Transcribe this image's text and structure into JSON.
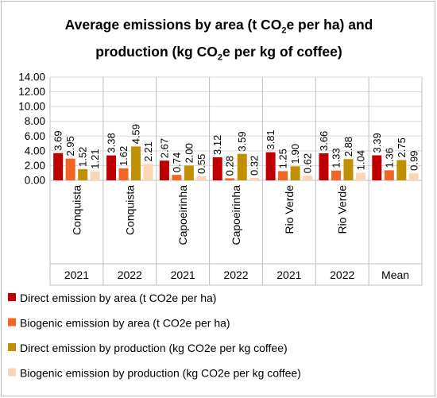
{
  "chart_data": {
    "type": "bar",
    "title_line1_pre": "Average emissions by area (t CO",
    "title_line1_sub": "2",
    "title_line1_post": "e per ha) and",
    "title_line2_pre": "production (kg CO",
    "title_line2_sub": "2",
    "title_line2_post": "e per kg of coffee)",
    "categories": [
      {
        "name": "Conquista",
        "group": "2021"
      },
      {
        "name": "Conquista",
        "group": "2022"
      },
      {
        "name": "Capoeirinha",
        "group": "2021"
      },
      {
        "name": "Capoeirinha",
        "group": "2022"
      },
      {
        "name": "Rio Verde",
        "group": "2021"
      },
      {
        "name": "Rio Verde",
        "group": "2022"
      },
      {
        "name": "",
        "group": "Mean"
      }
    ],
    "series": [
      {
        "name": "Direct emission by area (t CO2e per ha)",
        "color": "#c00000",
        "values": [
          3.69,
          3.38,
          2.67,
          3.12,
          3.81,
          3.66,
          3.39
        ],
        "labels": [
          "3.69",
          "3.38",
          "2.67",
          "3.12",
          "3.81",
          "3.66",
          "3.39"
        ]
      },
      {
        "name": "Biogenic emission by area (t CO2e per ha)",
        "color": "#f26522",
        "values": [
          2.95,
          1.62,
          0.74,
          0.28,
          1.25,
          1.33,
          1.36
        ],
        "labels": [
          "2.95",
          "1.62",
          "0.74",
          "0.28",
          "1.25",
          "1.33",
          "1.36"
        ]
      },
      {
        "name": "Direct emission by production (kg CO2e per kg coffee)",
        "color": "#bf9000",
        "values": [
          1.52,
          4.59,
          2.0,
          3.59,
          1.9,
          2.88,
          2.75
        ],
        "labels": [
          "1.52",
          "4.59",
          "2.00",
          "3.59",
          "1.90",
          "2.88",
          "2.75"
        ]
      },
      {
        "name": "Biogenic emission by production (kg CO2e per kg coffee)",
        "color": "#fcd5b4",
        "values": [
          1.21,
          2.21,
          0.55,
          0.32,
          0.62,
          1.04,
          0.99
        ],
        "labels": [
          "1.21",
          "2.21",
          "0.55",
          "0.32",
          "0.62",
          "1.04",
          "0.99"
        ]
      }
    ],
    "ylim": [
      0,
      14
    ],
    "yticks": [
      "0.00",
      "2.00",
      "4.00",
      "6.00",
      "8.00",
      "10.00",
      "12.00",
      "14.00"
    ],
    "legend_position": "bottom"
  }
}
